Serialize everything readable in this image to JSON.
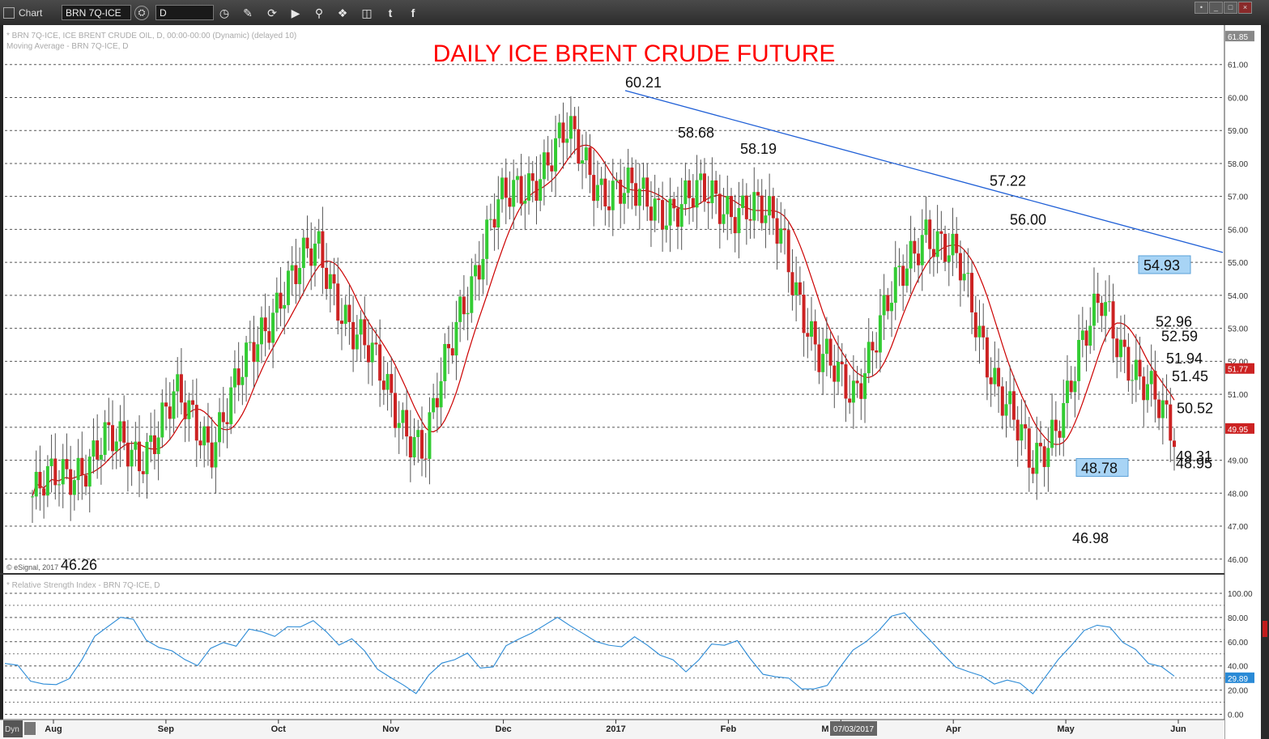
{
  "toolbar": {
    "app_title": "Chart",
    "symbol": "BRN 7Q-ICE",
    "interval": "D",
    "icons": [
      "layout-icon",
      "refresh-icon",
      "interval-clock-icon",
      "pencil-icon",
      "cycle-icon",
      "play-icon",
      "zoom-icon",
      "tag-icon",
      "comment-icon",
      "twitter-icon",
      "facebook-icon"
    ],
    "window_buttons": [
      "pin-icon",
      "minimize-icon",
      "restore-icon",
      "close-icon"
    ]
  },
  "colors": {
    "up": "#33cc33",
    "down": "#cc2222",
    "ma": "#cc0000",
    "trend": "#1f5fd6",
    "rsi": "#2a8ad6",
    "title": "#ff0000",
    "callout_bg": "#a8d4f5"
  },
  "chart_data": {
    "type": "candlestick",
    "title": "DAILY ICE BRENT CRUDE FUTURE",
    "header_lines": [
      "* BRN 7Q-ICE, ICE BRENT CRUDE OIL, D, 00:00-00:00 (Dynamic) (delayed 10)",
      "Moving Average - BRN 7Q-ICE, D"
    ],
    "copyright": "© eSignal, 2017",
    "ylim": [
      45.7,
      62.0
    ],
    "y_ticks": [
      "61.85",
      "61.00",
      "60.00",
      "59.00",
      "58.00",
      "57.00",
      "56.00",
      "55.00",
      "54.00",
      "53.00",
      "52.00",
      "51.00",
      "50.00",
      "49.00",
      "48.00",
      "47.00",
      "46.00"
    ],
    "grid": true,
    "x_labels": [
      "Aug",
      "Sep",
      "Oct",
      "Nov",
      "Dec",
      "2017",
      "Feb",
      "M",
      "Apr",
      "May",
      "Jun"
    ],
    "crosshair_date": "07/03/2017",
    "last_price": "49.95",
    "ma_value": "51.77",
    "annotations": [
      "60.21",
      "58.68",
      "58.19",
      "57.22",
      "56.00",
      "54.93",
      "52.96",
      "52.59",
      "51.94",
      "51.45",
      "50.52",
      "49.31",
      "48.95",
      "48.78",
      "46.98",
      "46.26"
    ],
    "boxed_annotations": [
      "54.93",
      "48.78"
    ],
    "trendline": {
      "from": {
        "date_index": 0,
        "value": 60.21
      },
      "to": {
        "date_index": 1,
        "value": 55.3
      }
    },
    "key_closes": [
      {
        "label": "Aug",
        "close": 47.9
      },
      {
        "label": "Aug",
        "close": 48.6
      },
      {
        "label": "Aug",
        "close": 49.5
      },
      {
        "label": "Sep",
        "close": 49.2
      },
      {
        "label": "Sep",
        "close": 50.8
      },
      {
        "label": "Sep",
        "close": 49.6
      },
      {
        "label": "Oct",
        "close": 51.8
      },
      {
        "label": "Oct",
        "close": 54.3
      },
      {
        "label": "Oct",
        "close": 55.3
      },
      {
        "label": "Nov",
        "close": 53.0
      },
      {
        "label": "Nov",
        "close": 51.0
      },
      {
        "label": "Nov",
        "close": 49.2
      },
      {
        "label": "Dec",
        "close": 53.7
      },
      {
        "label": "Dec",
        "close": 56.5
      },
      {
        "label": "Dec",
        "close": 57.6
      },
      {
        "label": "2017",
        "close": 58.8
      },
      {
        "label": "2017",
        "close": 57.3
      },
      {
        "label": "2017",
        "close": 56.9
      },
      {
        "label": "Feb",
        "close": 56.7
      },
      {
        "label": "Feb",
        "close": 57.0
      },
      {
        "label": "Feb",
        "close": 56.6
      },
      {
        "label": "M",
        "close": 56.0
      },
      {
        "label": "M",
        "close": 52.0
      },
      {
        "label": "M",
        "close": 51.2
      },
      {
        "label": "Apr",
        "close": 53.6
      },
      {
        "label": "Apr",
        "close": 56.2
      },
      {
        "label": "Apr",
        "close": 54.7
      },
      {
        "label": "May",
        "close": 51.5
      },
      {
        "label": "May",
        "close": 48.7
      },
      {
        "label": "May",
        "close": 51.0
      },
      {
        "label": "Jun",
        "close": 54.0
      },
      {
        "label": "Jun",
        "close": 51.3
      },
      {
        "label": "Jun",
        "close": 49.95
      }
    ],
    "rsi": {
      "title": "* Relative Strength Index - BRN 7Q-ICE, D",
      "ylim": [
        -3,
        108
      ],
      "y_ticks": [
        "100.00",
        "80.00",
        "60.00",
        "40.00",
        "20.00",
        "0.00"
      ],
      "current_value": "29.89",
      "values": [
        42,
        38,
        30,
        25,
        22,
        32,
        45,
        62,
        75,
        80,
        76,
        64,
        55,
        50,
        48,
        40,
        52,
        62,
        56,
        68,
        71,
        64,
        70,
        75,
        77,
        66,
        60,
        62,
        50,
        40,
        30,
        22,
        20,
        32,
        40,
        48,
        50,
        36,
        42,
        56,
        60,
        70,
        73,
        78,
        76,
        66,
        58,
        60,
        55,
        62,
        60,
        48,
        43,
        38,
        44,
        56,
        60,
        60,
        44,
        36,
        30,
        28,
        24,
        20,
        22,
        42,
        52,
        58,
        72,
        80,
        82,
        75,
        60,
        48,
        42,
        34,
        30,
        28,
        27,
        24,
        20,
        30,
        44,
        60,
        68,
        72,
        75,
        58,
        52,
        45,
        38,
        30
      ]
    }
  }
}
